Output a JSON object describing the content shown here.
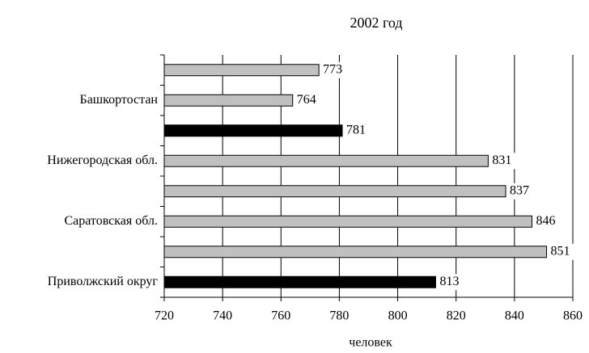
{
  "chart_data": {
    "type": "bar",
    "orientation": "horizontal",
    "title": "2002 год",
    "x_label": "человек",
    "categories": [
      null,
      "Башкортостан",
      null,
      "Нижегородская обл.",
      null,
      "Саратовская обл.",
      null,
      "Приволжский округ"
    ],
    "values": [
      773,
      764,
      781,
      831,
      837,
      846,
      851,
      813
    ],
    "colors": [
      "#c0c0c0",
      "#c0c0c0",
      "#000000",
      "#c0c0c0",
      "#c0c0c0",
      "#c0c0c0",
      "#c0c0c0",
      "#000000"
    ],
    "xlim": [
      720,
      860
    ],
    "xticks": [
      720,
      740,
      760,
      780,
      800,
      820,
      840,
      860
    ],
    "grid": true
  }
}
